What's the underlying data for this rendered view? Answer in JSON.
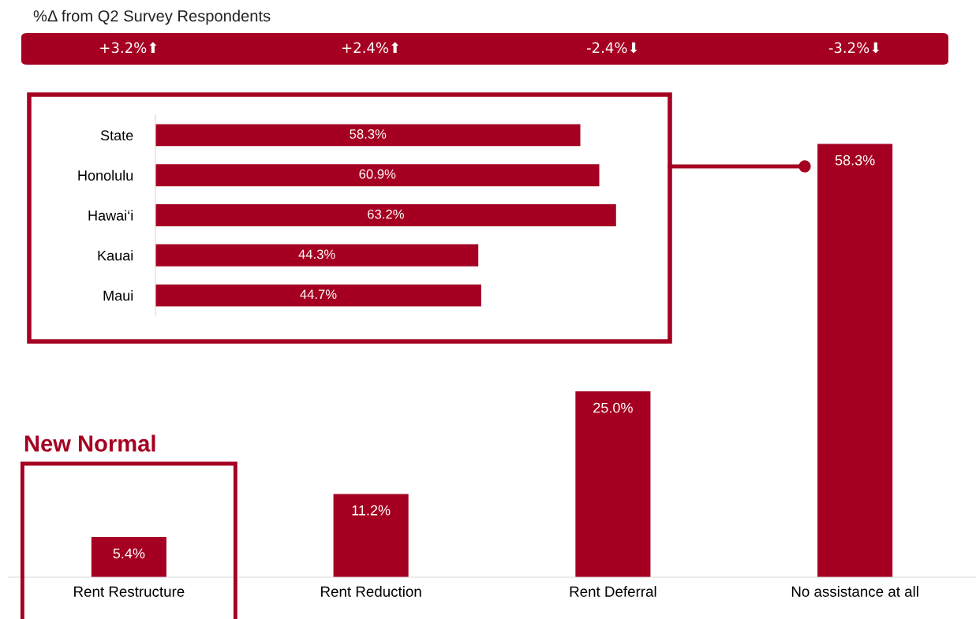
{
  "chart_data": [
    {
      "type": "bar",
      "title": "%Δ from Q2 Survey Respondents",
      "categories": [
        "Rent Restructure",
        "Rent Reduction",
        "Rent Deferral",
        "No assistance at all"
      ],
      "values": [
        5.4,
        11.2,
        25.0,
        58.3
      ],
      "value_labels": [
        "5.4%",
        "11.2%",
        "25.0%",
        "58.3%"
      ],
      "color": "#a50021",
      "annotations": [
        "+3.2%⬆",
        "+2.4%⬆",
        "-2.4%⬇",
        "-3.2%⬇",
        "New Normal"
      ],
      "grid": false,
      "legend": false
    },
    {
      "type": "bar",
      "orientation": "horizontal",
      "categories": [
        "State",
        "Honolulu",
        "Hawai‘i",
        "Kauai",
        "Maui"
      ],
      "values": [
        58.3,
        60.9,
        63.2,
        44.3,
        44.7
      ],
      "value_labels": [
        "58.3%",
        "60.9%",
        "63.2%",
        "44.3%",
        "44.7%"
      ],
      "color": "#a50021",
      "grid": false,
      "legend": false
    }
  ]
}
